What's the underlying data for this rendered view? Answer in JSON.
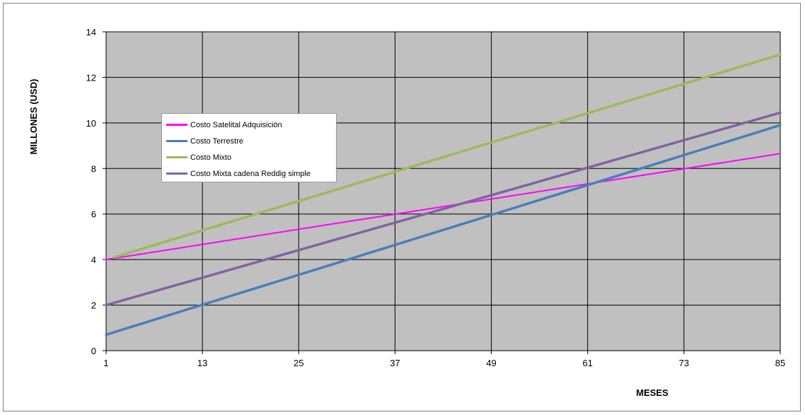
{
  "chart_data": {
    "type": "line",
    "title": "",
    "xlabel": "MESES",
    "ylabel": "MILLONES (USD)",
    "xlim": [
      1,
      85
    ],
    "ylim": [
      0,
      14
    ],
    "x_ticks": [
      1,
      13,
      25,
      37,
      49,
      61,
      73,
      85
    ],
    "y_ticks": [
      0,
      2,
      4,
      6,
      8,
      10,
      12,
      14
    ],
    "grid": true,
    "plot_background": "#c0c0c0",
    "legend_position": "left",
    "series": [
      {
        "name": "Costo Satelital Adquisición",
        "color": "#ff00ff",
        "x": [
          1,
          85
        ],
        "y": [
          4.0,
          8.65
        ]
      },
      {
        "name": "Costo Terrestre",
        "color": "#4a7ebb",
        "x": [
          1,
          85
        ],
        "y": [
          0.7,
          9.9
        ]
      },
      {
        "name": "Costo Mixto",
        "color": "#9bbb59",
        "x": [
          2,
          85
        ],
        "y": [
          4.1,
          13.0
        ]
      },
      {
        "name": "Costo Mixta cadena Reddig simple",
        "color": "#8064a2",
        "x": [
          1,
          85
        ],
        "y": [
          2.0,
          10.45
        ]
      }
    ]
  }
}
